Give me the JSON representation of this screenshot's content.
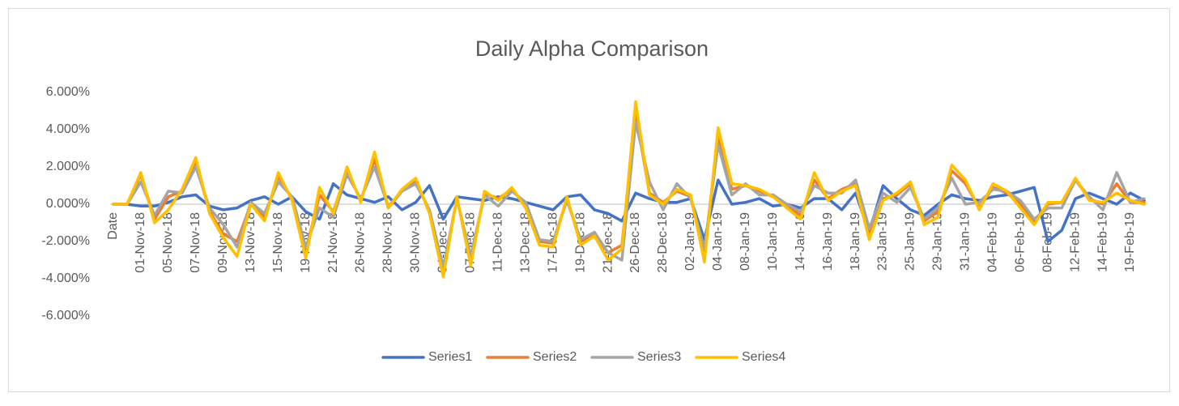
{
  "chart_data": {
    "type": "line",
    "title": "Daily Alpha Comparison",
    "categories": [
      "Date",
      null,
      "01-Nov-18",
      null,
      "05-Nov-18",
      null,
      "07-Nov-18",
      null,
      "09-Nov-18",
      null,
      "13-Nov-18",
      null,
      "15-Nov-18",
      null,
      "19-Nov-18",
      null,
      "21-Nov-18",
      null,
      "26-Nov-18",
      null,
      "28-Nov-18",
      null,
      "30-Nov-18",
      null,
      "04-Dec-18",
      null,
      "07-Dec-18",
      null,
      "11-Dec-18",
      null,
      "13-Dec-18",
      null,
      "17-Dec-18",
      null,
      "19-Dec-18",
      null,
      "21-Dec-18",
      null,
      "26-Dec-18",
      null,
      "28-Dec-18",
      null,
      "02-Jan-19",
      null,
      "04-Jan-19",
      null,
      "08-Jan-19",
      null,
      "10-Jan-19",
      null,
      "14-Jan-19",
      null,
      "16-Jan-19",
      null,
      "18-Jan-19",
      null,
      "23-Jan-19",
      null,
      "25-Jan-19",
      null,
      "29-Jan-19",
      null,
      "31-Jan-19",
      null,
      "04-Feb-19",
      null,
      "06-Feb-19",
      null,
      "08-Feb-19",
      null,
      "12-Feb-19",
      null,
      "14-Feb-19",
      null,
      "19-Feb-19",
      null
    ],
    "series": [
      {
        "name": "Series1",
        "color": "#4472c4",
        "values": [
          0,
          0,
          -0.1,
          -0.1,
          0.1,
          0.4,
          0.5,
          -0.1,
          -0.3,
          -0.2,
          0.2,
          0.4,
          0,
          0.4,
          -0.4,
          -0.8,
          1.1,
          0.5,
          0.3,
          0.1,
          0.4,
          -0.3,
          0.1,
          1.0,
          -0.8,
          0.4,
          0.3,
          0.2,
          0.4,
          0.3,
          0.1,
          -0.1,
          -0.3,
          0.4,
          0.5,
          -0.3,
          -0.5,
          -0.9,
          0.6,
          0.3,
          0.1,
          0.1,
          0.3,
          -1.9,
          1.3,
          0,
          0.1,
          0.3,
          -0.1,
          0,
          -0.2,
          0.3,
          0.3,
          -0.3,
          0.6,
          -1.5,
          1.0,
          0.3,
          -0.3,
          -0.6,
          0,
          0.5,
          0.3,
          0.2,
          0.4,
          0.5,
          0.7,
          0.9,
          -2.0,
          -1.4,
          0.3,
          0.6,
          0.3,
          0,
          0.6,
          0.2
        ]
      },
      {
        "name": "Series2",
        "color": "#ed7d31",
        "values": [
          0,
          0,
          1.6,
          -0.8,
          0.4,
          0.7,
          2.2,
          -0.4,
          -1.6,
          -2.0,
          0,
          -0.7,
          1.5,
          0.3,
          -2.5,
          0.5,
          -0.4,
          1.8,
          0.2,
          2.4,
          -0.2,
          0.7,
          1.3,
          -0.4,
          -3.6,
          0.3,
          -3.0,
          0.6,
          0.3,
          0.8,
          -0.1,
          -2.0,
          -2.1,
          0.3,
          -2.0,
          -1.6,
          -2.6,
          -2.2,
          4.9,
          0.6,
          0.1,
          0.7,
          0.4,
          -2.6,
          3.6,
          0.8,
          1.0,
          0.7,
          0.4,
          -0.1,
          -0.6,
          1.3,
          0.3,
          0.8,
          1.1,
          -1.6,
          0.3,
          0.5,
          1.1,
          -0.9,
          -0.4,
          1.8,
          1.1,
          -0.2,
          0.9,
          0.6,
          0,
          -0.9,
          0,
          0.1,
          1.3,
          0.3,
          0,
          1.1,
          0.1,
          0.1
        ]
      },
      {
        "name": "Series3",
        "color": "#a5a5a5",
        "values": [
          0,
          0,
          1.2,
          -0.6,
          0.7,
          0.6,
          2.0,
          -0.2,
          -1.1,
          -2.3,
          0.1,
          -0.5,
          1.2,
          0.4,
          -2.3,
          -0.2,
          -0.7,
          1.6,
          0.3,
          2.0,
          -0.1,
          0.7,
          1.1,
          -0.3,
          -3.4,
          0.3,
          -2.8,
          0.5,
          -0.1,
          0.7,
          0.1,
          -1.9,
          -2.0,
          0.2,
          -1.9,
          -1.5,
          -2.6,
          -3.0,
          4.4,
          1.2,
          -0.3,
          1.1,
          0.3,
          -2.4,
          3.2,
          0.5,
          1.1,
          0.5,
          0.5,
          0,
          -0.4,
          1.0,
          0.6,
          0.6,
          1.3,
          -1.3,
          0.6,
          0.1,
          0.9,
          -0.8,
          -0.2,
          1.4,
          0,
          0.1,
          0.8,
          0.7,
          0.2,
          -0.8,
          -0.2,
          -0.2,
          1.3,
          0.4,
          -0.3,
          1.7,
          0.1,
          0.3
        ]
      },
      {
        "name": "Series4",
        "color": "#ffc000",
        "values": [
          0,
          0,
          1.7,
          -1.0,
          -0.3,
          0.8,
          2.5,
          -0.5,
          -1.8,
          -2.8,
          0,
          -0.9,
          1.7,
          0.2,
          -2.9,
          0.9,
          -0.5,
          2.0,
          0.1,
          2.8,
          -0.2,
          0.8,
          1.4,
          -0.5,
          -3.9,
          0.4,
          -3.3,
          0.7,
          0.2,
          0.9,
          -0.2,
          -2.2,
          -2.3,
          0.4,
          -2.2,
          -1.7,
          -3.0,
          -2.4,
          5.5,
          0.5,
          0,
          0.8,
          0.5,
          -3.1,
          4.1,
          1.1,
          1.0,
          0.8,
          0.4,
          -0.2,
          -0.8,
          1.7,
          0.2,
          0.7,
          1.0,
          -1.9,
          0.2,
          0.6,
          1.2,
          -1.1,
          -0.7,
          2.1,
          1.3,
          -0.3,
          1.1,
          0.7,
          -0.2,
          -1.1,
          0.1,
          0.1,
          1.4,
          0.2,
          0.1,
          0.6,
          0.2,
          0
        ]
      }
    ],
    "ylim": [
      -6,
      6
    ],
    "yticks": [
      {
        "value": -6,
        "label": "-6.000%"
      },
      {
        "value": -4,
        "label": "-4.000%"
      },
      {
        "value": -2,
        "label": "-2.000%"
      },
      {
        "value": 0,
        "label": "0.000%"
      },
      {
        "value": 2,
        "label": "2.000%"
      },
      {
        "value": 4,
        "label": "4.000%"
      },
      {
        "value": 6,
        "label": "6.000%"
      }
    ],
    "grid": false,
    "legend": "bottom"
  }
}
